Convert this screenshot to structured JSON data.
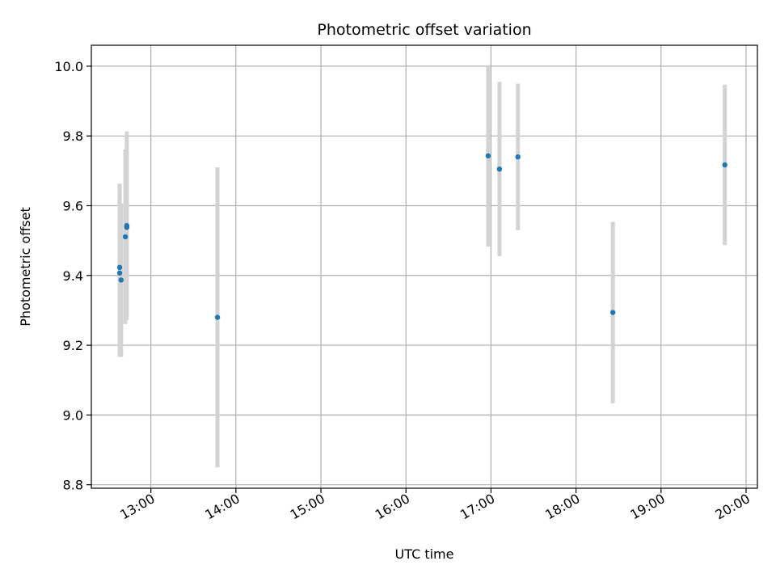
{
  "chart_data": {
    "type": "scatter",
    "title": "Photometric offset variation",
    "xlabel": "UTC time",
    "ylabel": "Photometric offset",
    "grid": true,
    "x_ticks": [
      "13:00",
      "14:00",
      "15:00",
      "16:00",
      "17:00",
      "18:00",
      "19:00",
      "20:00"
    ],
    "y_ticks": [
      "8.8",
      "9.0",
      "9.2",
      "9.4",
      "9.6",
      "9.8",
      "10.0"
    ],
    "xlim": [
      "12:18",
      "20:08"
    ],
    "ylim": [
      8.79,
      10.06
    ],
    "colors": {
      "points": "#1f77b4",
      "error_bars": "#d3d3d3",
      "grid": "#b0b0b0"
    },
    "points": [
      {
        "x": "12:38",
        "y": 9.423,
        "err": 0.24
      },
      {
        "x": "12:38",
        "y": 9.407,
        "err": 0.24
      },
      {
        "x": "12:39",
        "y": 9.387,
        "err": 0.22
      },
      {
        "x": "12:42",
        "y": 9.511,
        "err": 0.25
      },
      {
        "x": "12:43",
        "y": 9.538,
        "err": 0.22
      },
      {
        "x": "12:43",
        "y": 9.543,
        "err": 0.27
      },
      {
        "x": "13:47",
        "y": 9.28,
        "err": 0.43
      },
      {
        "x": "16:58",
        "y": 9.743,
        "err": 0.26
      },
      {
        "x": "17:06",
        "y": 9.705,
        "err": 0.25
      },
      {
        "x": "17:19",
        "y": 9.74,
        "err": 0.21
      },
      {
        "x": "18:26",
        "y": 9.294,
        "err": 0.26
      },
      {
        "x": "19:45",
        "y": 9.717,
        "err": 0.23
      }
    ]
  }
}
